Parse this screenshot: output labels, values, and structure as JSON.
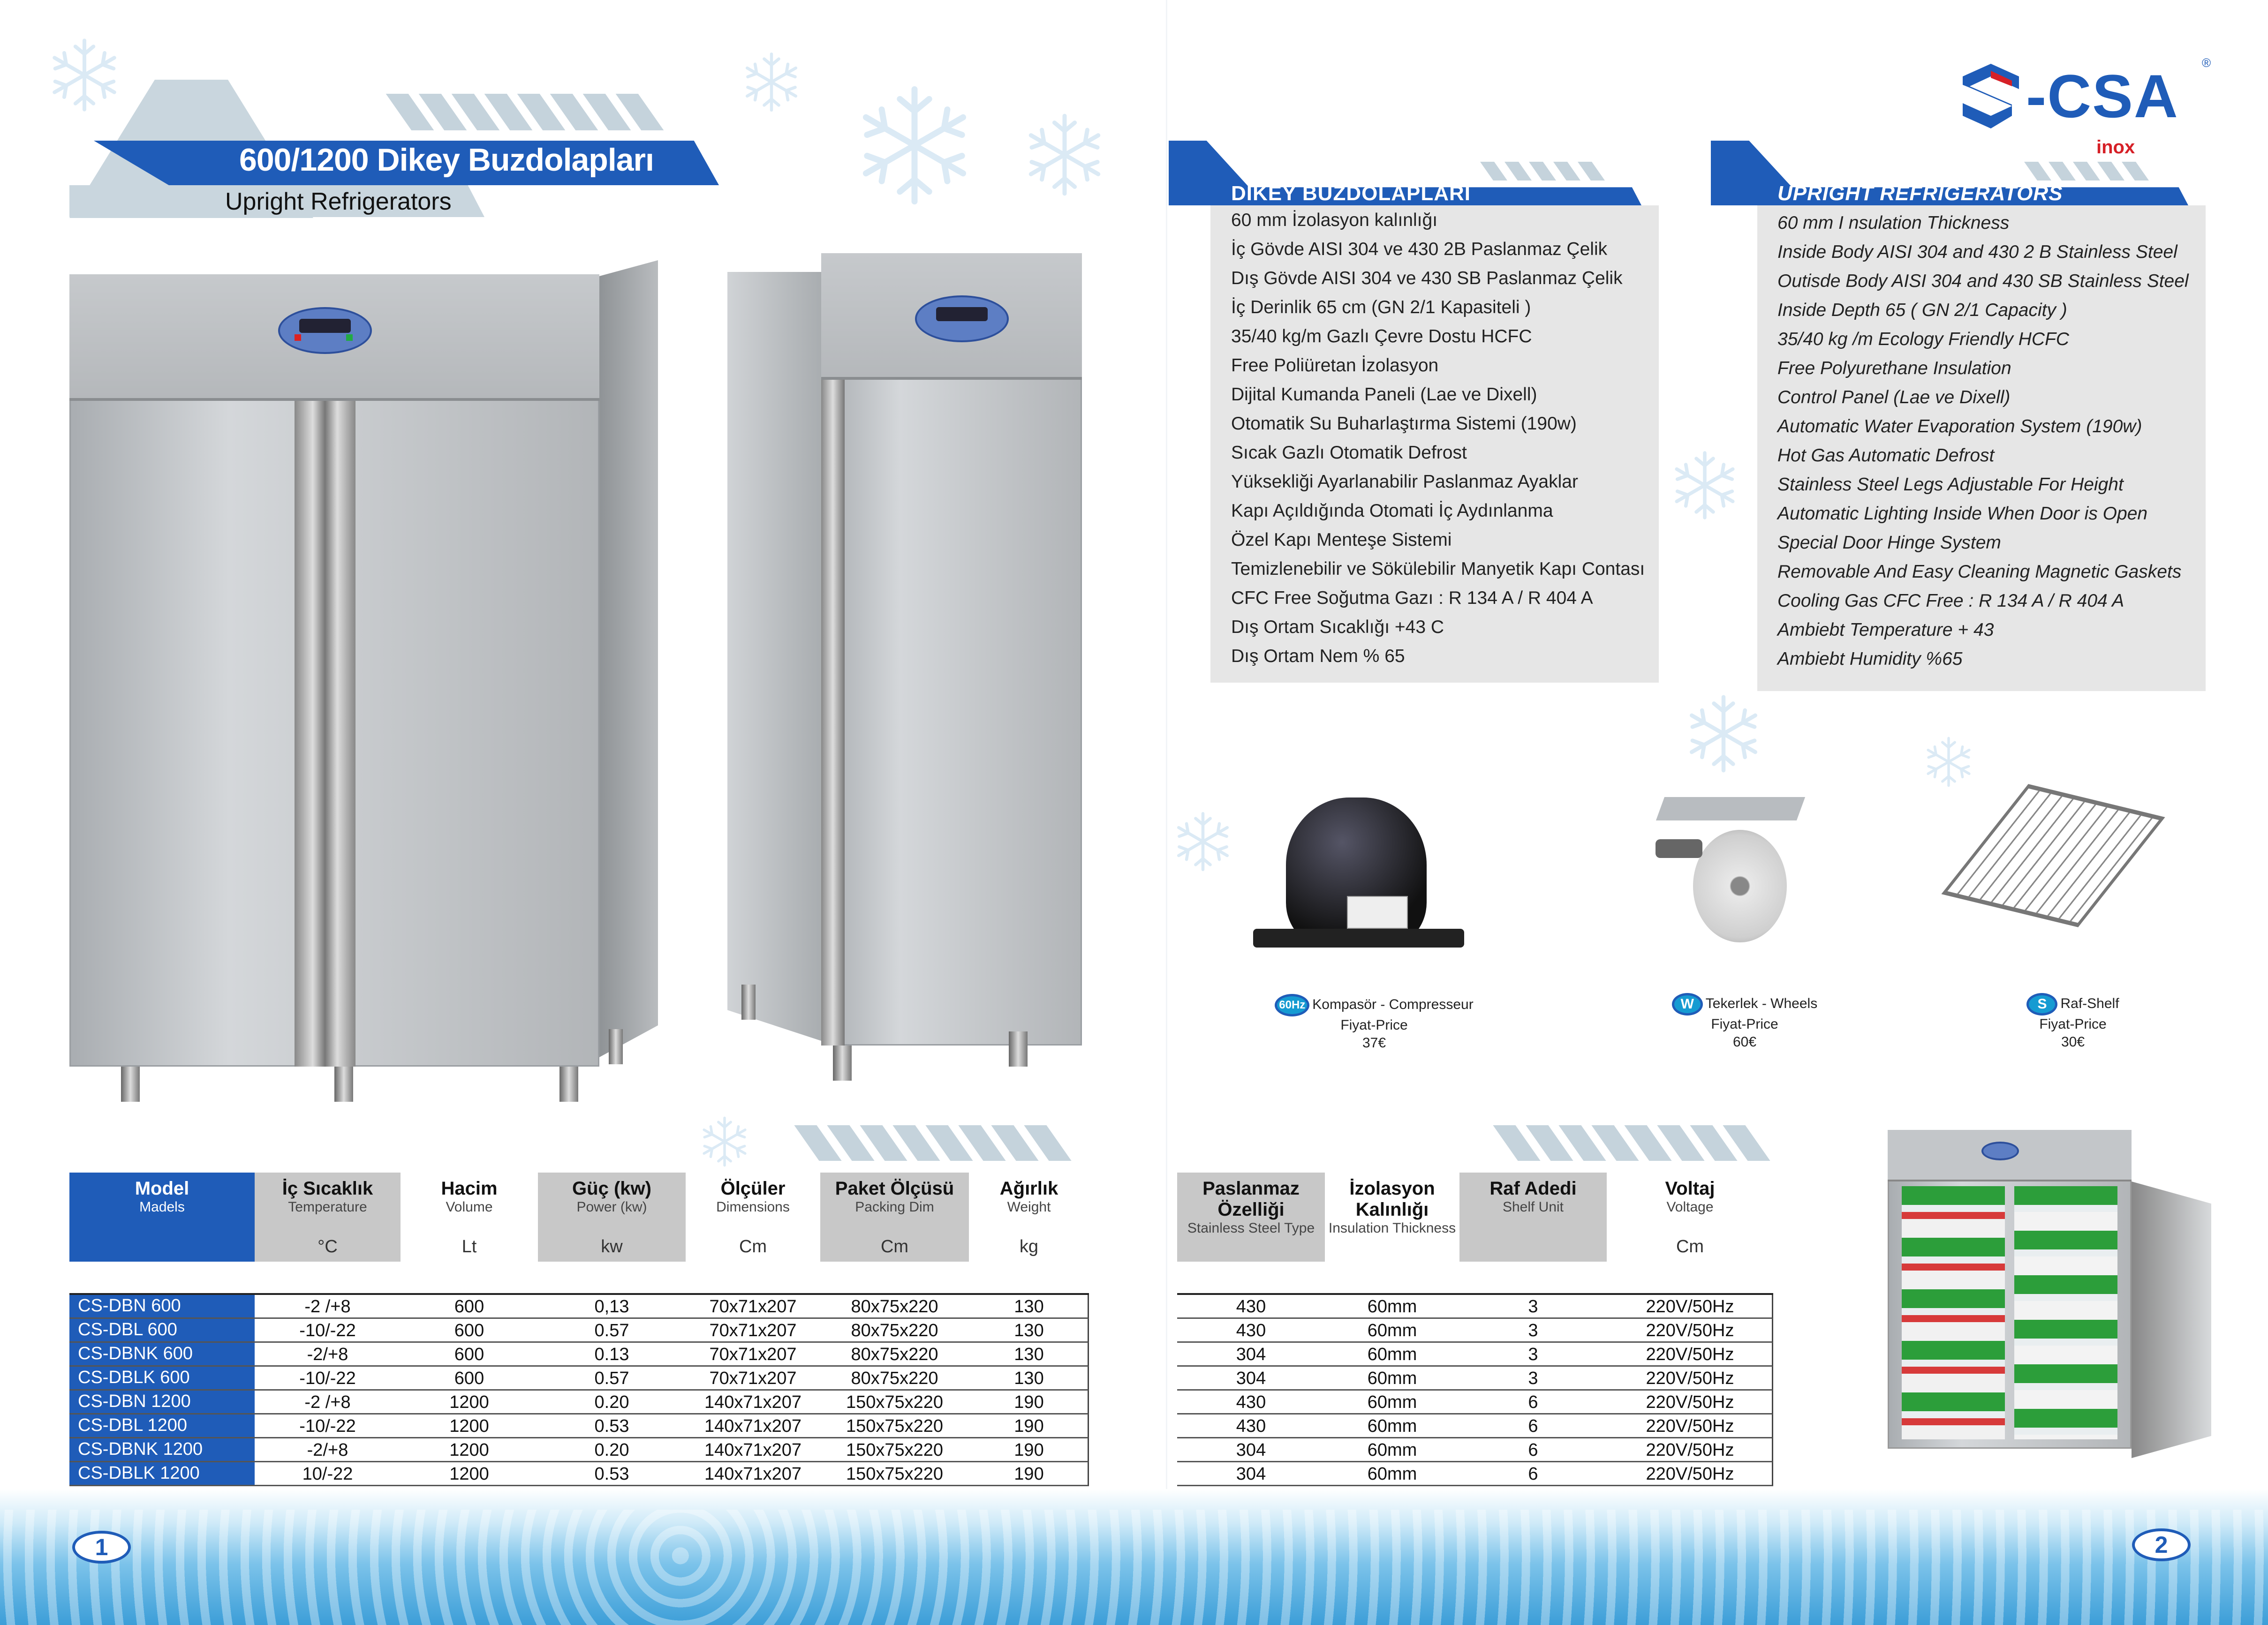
{
  "header": {
    "title": "600/1200 Dikey Buzdolapları",
    "subtitle": "Upright Refrigerators"
  },
  "brand": {
    "name": "-CSA",
    "sub": "inox",
    "registered": "®",
    "color": "#1f5cb8",
    "accent": "#d62027"
  },
  "specs_tr": {
    "title": "DİKEY BUZDOLAPLARI",
    "items": [
      "60 mm İzolasyon kalınlığı",
      "İç Gövde AISI 304 ve 430 2B Paslanmaz Çelik",
      "Dış Gövde AISI 304 ve 430 SB Paslanmaz Çelik",
      "İç Derinlik 65 cm (GN 2/1 Kapasiteli )",
      "35/40 kg/m Gazlı Çevre Dostu HCFC",
      "Free Poliüretan İzolasyon",
      "Dijital Kumanda Paneli (Lae ve Dixell)",
      "Otomatik Su Buharlaştırma Sistemi (190w)",
      "Sıcak Gazlı Otomatik Defrost",
      "Yüksekliği Ayarlanabilir Paslanmaz Ayaklar",
      "Kapı Açıldığında Otomati İç Aydınlanma",
      "Özel  Kapı Menteşe Sistemi",
      "Temizlenebilir ve Sökülebilir Manyetik Kapı Contası",
      "CFC Free Soğutma Gazı : R 134 A  / R 404 A",
      "Dış Ortam Sıcaklığı  +43 C",
      "Dış Ortam Nem  % 65"
    ]
  },
  "specs_en": {
    "title": "UPRIGHT REFRIGERATORS",
    "items": [
      "60 mm I nsulation Thickness",
      "Inside Body AISI 304 and 430 2 B Stainless Steel",
      "Outisde Body AISI 304 and 430 SB Stainless Steel",
      "Inside Depth 65 ( GN 2/1 Capacity )",
      "35/40 kg /m Ecology Friendly HCFC",
      "Free Polyurethane Insulation",
      "Control Panel (Lae ve Dixell)",
      "Automatic Water Evaporation System (190w)",
      "Hot Gas Automatic Defrost",
      "Stainless Steel Legs Adjustable For Height",
      "Automatic Lighting Inside When Door is Open",
      "Special Door Hinge System",
      "Removable And Easy Cleaning Magnetic Gaskets",
      "Cooling Gas CFC Free : R 134 A  / R 404 A",
      "Ambiebt Temperature + 43",
      "Ambiebt  Humidity  %65"
    ]
  },
  "accessories": [
    {
      "badge": "60Hz",
      "name": "Kompasör - Compresseur",
      "price_label": "Fiyat-Price",
      "price": "37€",
      "icon": "compressor-icon"
    },
    {
      "badge": "W",
      "name": "Tekerlek - Wheels",
      "price_label": "Fiyat-Price",
      "price": "60€",
      "icon": "wheel-icon"
    },
    {
      "badge": "S",
      "name": "Raf-Shelf",
      "price_label": "Fiyat-Price",
      "price": "30€",
      "icon": "shelf-icon"
    }
  ],
  "table_left": {
    "headers": [
      {
        "tr": "Model",
        "en": "Madels",
        "unit": ""
      },
      {
        "tr": "İç Sıcaklık",
        "en": "Temperature",
        "unit": "°C"
      },
      {
        "tr": "Hacim",
        "en": "Volume",
        "unit": "Lt"
      },
      {
        "tr": "Güç (kw)",
        "en": "Power (kw)",
        "unit": "kw"
      },
      {
        "tr": "Ölçüler",
        "en": "Dimensions",
        "unit": "Cm"
      },
      {
        "tr": "Paket Ölçüsü",
        "en": "Packing Dim",
        "unit": "Cm"
      },
      {
        "tr": "Ağırlık",
        "en": "Weight",
        "unit": "kg"
      }
    ],
    "rows": [
      [
        "CS-DBN   600",
        "-2 /+8",
        "600",
        "0,13",
        "70x71x207",
        "80x75x220",
        "130"
      ],
      [
        "CS-DBL    600",
        "-10/-22",
        "600",
        "0.57",
        "70x71x207",
        "80x75x220",
        "130"
      ],
      [
        "CS-DBNK 600",
        "-2/+8",
        "600",
        "0.13",
        "70x71x207",
        "80x75x220",
        "130"
      ],
      [
        "CS-DBLK  600",
        "-10/-22",
        "600",
        "0.57",
        "70x71x207",
        "80x75x220",
        "130"
      ],
      [
        "CS-DBN   1200",
        "-2 /+8",
        "1200",
        "0.20",
        "140x71x207",
        "150x75x220",
        "190"
      ],
      [
        "CS-DBL    1200",
        "-10/-22",
        "1200",
        "0.53",
        "140x71x207",
        "150x75x220",
        "190"
      ],
      [
        "CS-DBNK 1200",
        "-2/+8",
        "1200",
        "0.20",
        "140x71x207",
        "150x75x220",
        "190"
      ],
      [
        "CS-DBLK  1200",
        "10/-22",
        "1200",
        "0.53",
        "140x71x207",
        "150x75x220",
        "190"
      ]
    ]
  },
  "table_right": {
    "headers": [
      {
        "tr": "Paslanmaz Özelliği",
        "en": "Stainless Steel Type",
        "unit": ""
      },
      {
        "tr": "İzolasyon Kalınlığı",
        "en": "Insulation Thickness",
        "unit": ""
      },
      {
        "tr": "Raf Adedi",
        "en": "Shelf Unit",
        "unit": ""
      },
      {
        "tr": "Voltaj",
        "en": "Voltage",
        "unit": "Cm"
      }
    ],
    "rows": [
      [
        "430",
        "60mm",
        "3",
        "220V/50Hz"
      ],
      [
        "430",
        "60mm",
        "3",
        "220V/50Hz"
      ],
      [
        "304",
        "60mm",
        "3",
        "220V/50Hz"
      ],
      [
        "304",
        "60mm",
        "3",
        "220V/50Hz"
      ],
      [
        "430",
        "60mm",
        "6",
        "220V/50Hz"
      ],
      [
        "430",
        "60mm",
        "6",
        "220V/50Hz"
      ],
      [
        "304",
        "60mm",
        "6",
        "220V/50Hz"
      ],
      [
        "304",
        "60mm",
        "6",
        "220V/50Hz"
      ]
    ]
  },
  "pages": {
    "left": "1",
    "right": "2"
  }
}
